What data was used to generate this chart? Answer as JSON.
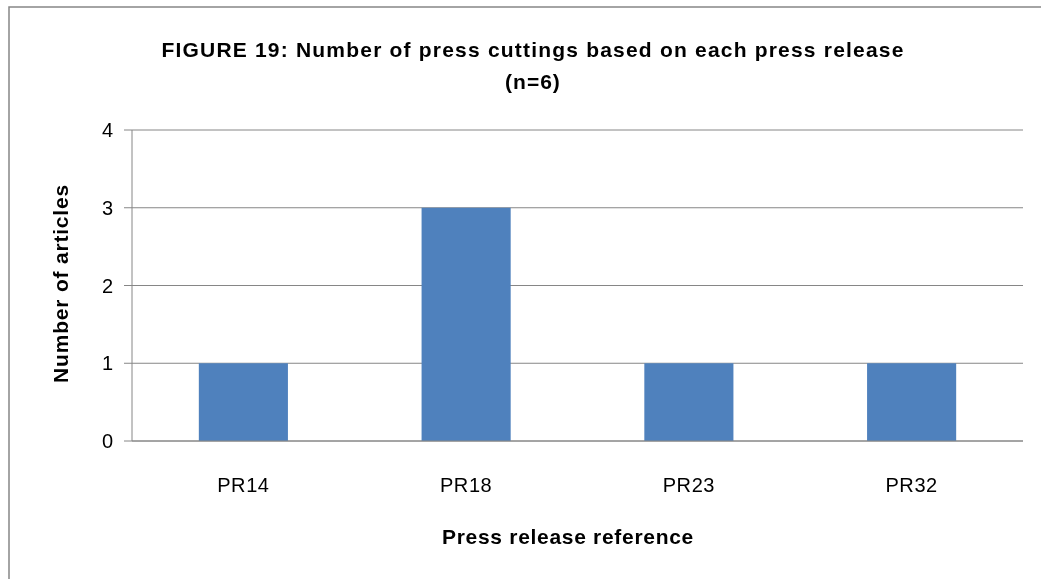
{
  "chart_data": {
    "type": "bar",
    "title": "FIGURE 19: Number of press cuttings based on each press release",
    "subtitle": "(n=6)",
    "xlabel": "Press release reference",
    "ylabel": "Number of articles",
    "categories": [
      "PR14",
      "PR18",
      "PR23",
      "PR32"
    ],
    "values": [
      1,
      3,
      1,
      1
    ],
    "color": "#4f81bd",
    "ylim": [
      0,
      4
    ],
    "yticks": [
      0,
      1,
      2,
      3,
      4
    ],
    "grid": "y"
  }
}
